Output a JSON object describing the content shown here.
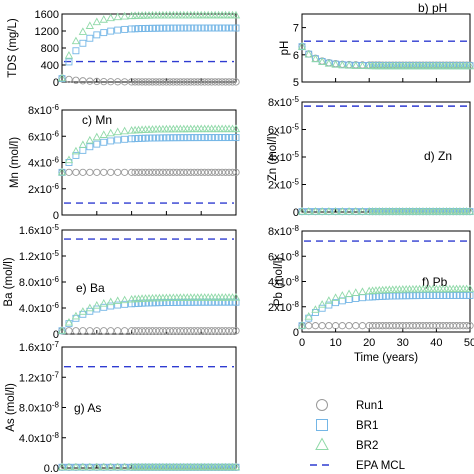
{
  "colors": {
    "run1": "#9a9a9a",
    "br1": "#74b6e6",
    "br2": "#8fd9a8",
    "mcl": "#2f3bd1"
  },
  "legend": {
    "run1": "Run1",
    "br1": "BR1",
    "br2": "BR2",
    "mcl": "EPA MCL"
  },
  "chart_data": [
    {
      "id": "tds",
      "type": "scatter",
      "panel_label": "",
      "ylabel": "TDS (mg/L)",
      "xlabel": "",
      "ylim": [
        0,
        1600
      ],
      "yticks": [
        "0",
        "400",
        "800",
        "1200",
        "1600"
      ],
      "ytick_values": [
        0,
        400,
        800,
        1200,
        1600
      ],
      "xlim": [
        0,
        50
      ],
      "mcl": 480,
      "series": [
        {
          "key": "run1",
          "x0": 90,
          "x1": 1,
          "k": 5
        },
        {
          "key": "br1",
          "x0": 80,
          "x1": 1270,
          "k": 5
        },
        {
          "key": "br2",
          "x0": 90,
          "x1": 1570,
          "k": 4.5
        }
      ]
    },
    {
      "id": "ph",
      "type": "scatter",
      "panel_label": "b) pH",
      "ylabel": "pH",
      "xlabel": "",
      "ylim": [
        5,
        7.5
      ],
      "yticks": [
        "5",
        "6",
        "7"
      ],
      "ytick_values": [
        5,
        6,
        7
      ],
      "xlim": [
        0,
        50
      ],
      "mcl": 6.5,
      "series": [
        {
          "key": "run1",
          "x0": 6.3,
          "x1": 5.62,
          "k": 4
        },
        {
          "key": "br1",
          "x0": 6.3,
          "x1": 5.6,
          "k": 4
        },
        {
          "key": "br2",
          "x0": 6.3,
          "x1": 5.58,
          "k": 4
        }
      ]
    },
    {
      "id": "mn",
      "type": "scatter",
      "panel_label": "c) Mn",
      "ylabel": "Mn (mol/l)",
      "xlabel": "",
      "ylim": [
        0,
        8e-06
      ],
      "yticks": [
        "0",
        "2x10-6",
        "4x10-6",
        "6x10-6",
        "8x10-6"
      ],
      "ytick_values": [
        0,
        2e-06,
        4e-06,
        6e-06,
        8e-06
      ],
      "xlim": [
        0,
        50
      ],
      "mcl": 9.1e-07,
      "series": [
        {
          "key": "run1",
          "x0": 3.25e-06,
          "x1": 3.25e-06,
          "k": 5
        },
        {
          "key": "br1",
          "x0": 3.25e-06,
          "x1": 5.9e-06,
          "k": 6
        },
        {
          "key": "br2",
          "x0": 3.25e-06,
          "x1": 6.55e-06,
          "k": 6
        }
      ]
    },
    {
      "id": "zn",
      "type": "scatter",
      "panel_label": "d) Zn",
      "ylabel": "Zn (mol/l)",
      "xlabel": "",
      "ylim": [
        0,
        8e-05
      ],
      "yticks": [
        "0",
        "2x10-5",
        "4x10-5",
        "6x10-5",
        "8x10-5"
      ],
      "ytick_values": [
        0,
        2e-05,
        4e-05,
        6e-05,
        8e-05
      ],
      "xlim": [
        0,
        50
      ],
      "mcl": 7.7e-05,
      "series": [
        {
          "key": "run1",
          "x0": 3e-07,
          "x1": 3e-07,
          "k": 5
        },
        {
          "key": "br1",
          "x0": 3e-07,
          "x1": 3e-07,
          "k": 5
        },
        {
          "key": "br2",
          "x0": 3e-07,
          "x1": 3e-07,
          "k": 5
        }
      ]
    },
    {
      "id": "ba",
      "type": "scatter",
      "panel_label": "e) Ba",
      "ylabel": "Ba (mol/l)",
      "xlabel": "",
      "ylim": [
        0,
        1.6e-05
      ],
      "yticks": [
        "0",
        "4.0x10-6",
        "8.0x10-6",
        "1.2x10-5",
        "1.6x10-5"
      ],
      "ytick_values": [
        0,
        4e-06,
        8e-06,
        1.2e-05,
        1.6e-05
      ],
      "xlim": [
        0,
        50
      ],
      "mcl": 1.46e-05,
      "series": [
        {
          "key": "run1",
          "x0": 5e-07,
          "x1": 5e-07,
          "k": 5
        },
        {
          "key": "br1",
          "x0": 5e-07,
          "x1": 4.9e-06,
          "k": 7
        },
        {
          "key": "br2",
          "x0": 5e-07,
          "x1": 5.6e-06,
          "k": 7
        }
      ]
    },
    {
      "id": "pb",
      "type": "scatter",
      "panel_label": "f) Pb",
      "ylabel": "Pb (mol/l)",
      "xlabel": "Time (years)",
      "ylim": [
        0,
        8e-08
      ],
      "yticks": [
        "0",
        "2x10-8",
        "4x10-8",
        "6x10-8",
        "8x10-8"
      ],
      "ytick_values": [
        0,
        2e-08,
        4e-08,
        6e-08,
        8e-08
      ],
      "xticks": [
        "0",
        "10",
        "20",
        "30",
        "40",
        "50"
      ],
      "xtick_values": [
        0,
        10,
        20,
        30,
        40,
        50
      ],
      "xlim": [
        0,
        50
      ],
      "mcl": 7.2e-08,
      "series": [
        {
          "key": "run1",
          "x0": 5e-09,
          "x1": 5e-09,
          "k": 5
        },
        {
          "key": "br1",
          "x0": 5e-09,
          "x1": 2.9e-08,
          "k": 7
        },
        {
          "key": "br2",
          "x0": 5e-09,
          "x1": 3.4e-08,
          "k": 7
        }
      ]
    },
    {
      "id": "as",
      "type": "scatter",
      "panel_label": "g) As",
      "ylabel": "As (mol/l)",
      "xlabel": "",
      "ylim": [
        0,
        1.6e-07
      ],
      "yticks": [
        "0.0",
        "4.0x10-8",
        "8.0x10-8",
        "1.2x10-7",
        "1.6x10-7"
      ],
      "ytick_values": [
        0,
        4e-08,
        8e-08,
        1.2e-07,
        1.6e-07
      ],
      "xlim": [
        0,
        50
      ],
      "mcl": 1.34e-07,
      "series": [
        {
          "key": "run1",
          "x0": 1e-09,
          "x1": 1e-09,
          "k": 5
        },
        {
          "key": "br1",
          "x0": 1e-09,
          "x1": 1e-09,
          "k": 5
        },
        {
          "key": "br2",
          "x0": 1e-09,
          "x1": 1e-09,
          "k": 5
        }
      ]
    }
  ]
}
